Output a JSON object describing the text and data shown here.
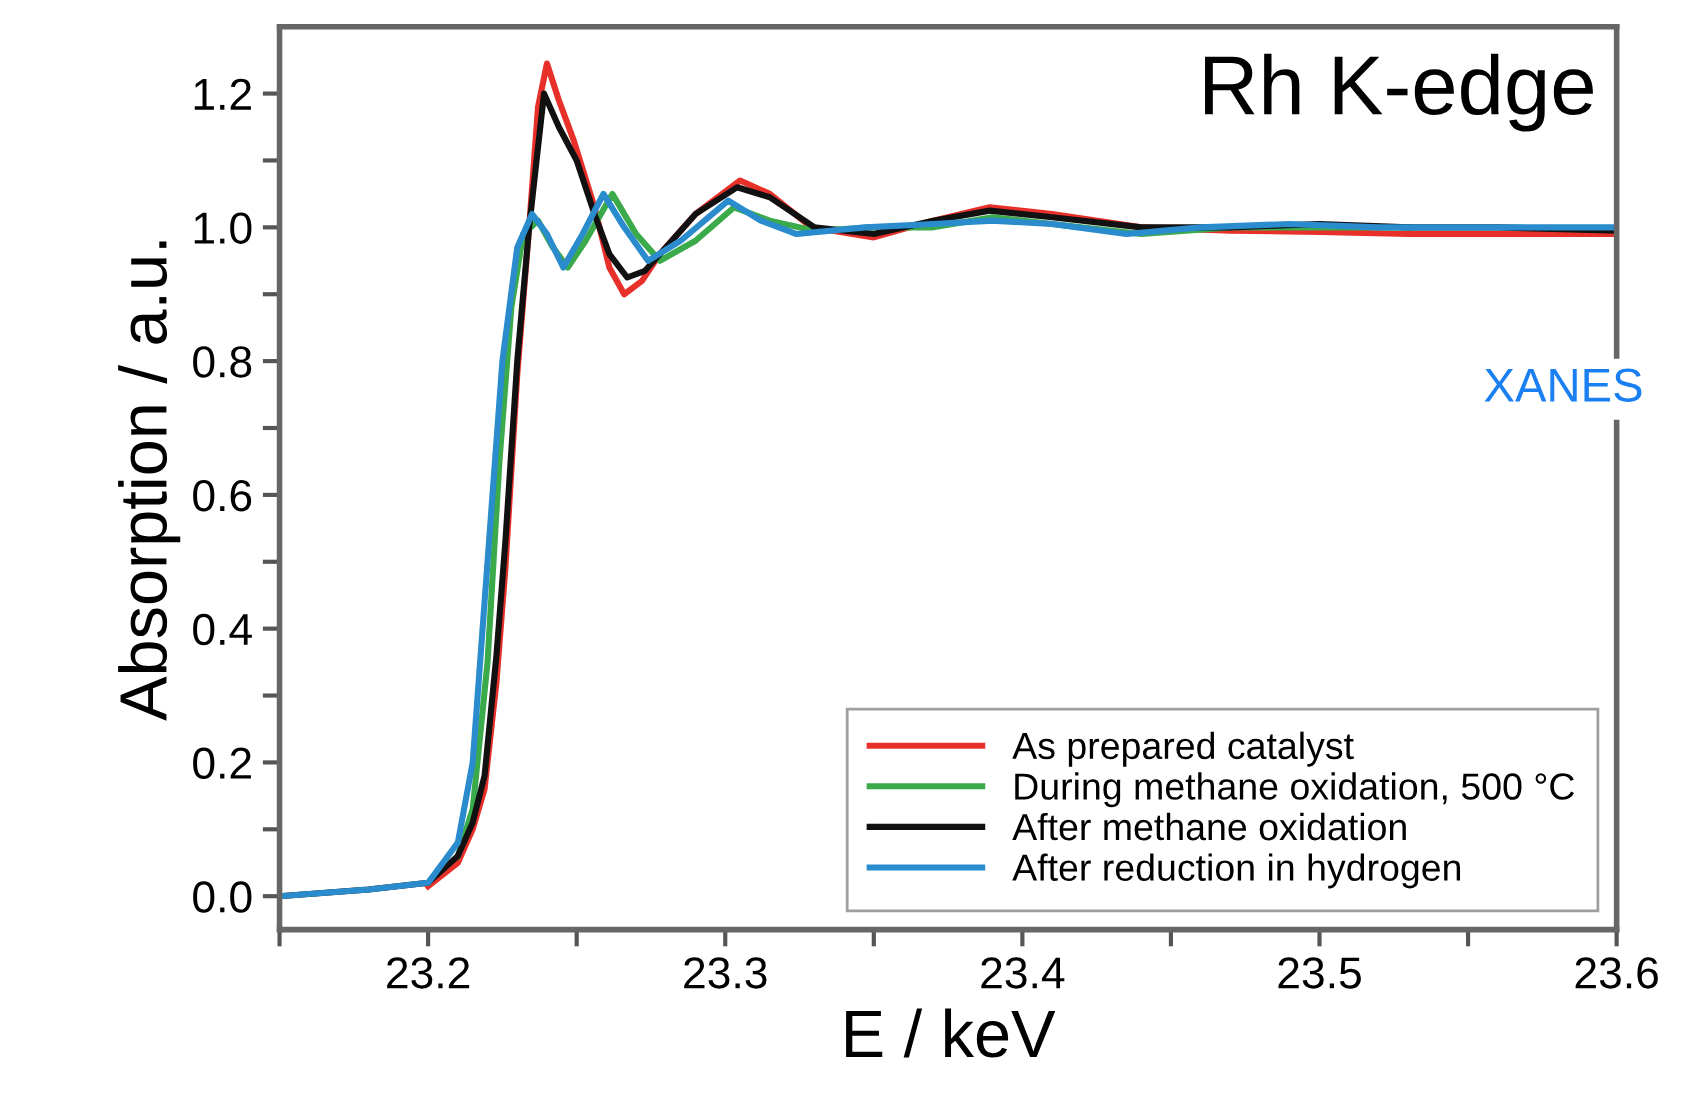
{
  "chart_data": {
    "type": "line",
    "xlabel": "E / keV",
    "ylabel": "Absorption / a.u.",
    "annotations": [
      "Rh K-edge",
      "XANES"
    ],
    "xlim": [
      23.15,
      23.6
    ],
    "xticks": [
      {
        "value": 23.15,
        "label": null
      },
      {
        "value": 23.2,
        "label": "23.2"
      },
      {
        "value": 23.25,
        "label": null
      },
      {
        "value": 23.3,
        "label": "23.3"
      },
      {
        "value": 23.35,
        "label": null
      },
      {
        "value": 23.4,
        "label": "23.4"
      },
      {
        "value": 23.45,
        "label": null
      },
      {
        "value": 23.5,
        "label": "23.5"
      },
      {
        "value": 23.55,
        "label": null
      },
      {
        "value": 23.6,
        "label": "23.6"
      }
    ],
    "ylim": [
      -0.05,
      1.3
    ],
    "yticks": [
      {
        "value": 0.0,
        "label": "0.0"
      },
      {
        "value": 0.1,
        "label": null
      },
      {
        "value": 0.2,
        "label": "0.2"
      },
      {
        "value": 0.3,
        "label": null
      },
      {
        "value": 0.4,
        "label": "0.4"
      },
      {
        "value": 0.5,
        "label": null
      },
      {
        "value": 0.6,
        "label": "0.6"
      },
      {
        "value": 0.7,
        "label": null
      },
      {
        "value": 0.8,
        "label": "0.8"
      },
      {
        "value": 0.9,
        "label": null
      },
      {
        "value": 1.0,
        "label": "1.0"
      },
      {
        "value": 1.1,
        "label": null
      },
      {
        "value": 1.2,
        "label": "1.2"
      }
    ],
    "grid": false,
    "legend": "bottom right",
    "marker": "none",
    "line_style": "solid",
    "series": [
      {
        "name": "As prepared catalyst",
        "color": "#e8302a",
        "x": [
          23.2,
          23.21,
          23.215,
          23.219,
          23.223,
          23.226,
          23.23,
          23.234,
          23.237,
          23.24,
          23.244,
          23.249,
          23.256,
          23.261,
          23.266,
          23.272,
          23.278,
          23.29,
          23.305,
          23.315,
          23.329,
          23.35,
          23.37,
          23.389,
          23.41,
          23.44,
          23.47,
          23.5,
          23.53,
          23.56,
          23.6
        ],
        "values": [
          0.015,
          0.05,
          0.1,
          0.16,
          0.32,
          0.49,
          0.78,
          1.0,
          1.18,
          1.245,
          1.19,
          1.13,
          1.03,
          0.94,
          0.9,
          0.92,
          0.96,
          1.02,
          1.07,
          1.05,
          1.0,
          0.985,
          1.01,
          1.03,
          1.02,
          1.0,
          0.995,
          0.993,
          0.99,
          0.99,
          0.99
        ]
      },
      {
        "name": "During methane oxidation, 500 °C",
        "color": "#3aaa4a",
        "x": [
          23.21,
          23.215,
          23.22,
          23.224,
          23.228,
          23.232,
          23.237,
          23.242,
          23.247,
          23.253,
          23.262,
          23.27,
          23.278,
          23.29,
          23.303,
          23.315,
          23.33,
          23.35,
          23.37,
          23.39,
          23.41,
          23.44,
          23.47,
          23.5,
          23.53
        ],
        "values": [
          0.06,
          0.13,
          0.35,
          0.65,
          0.88,
          0.99,
          1.01,
          0.97,
          0.94,
          0.98,
          1.05,
          0.99,
          0.95,
          0.98,
          1.03,
          1.01,
          0.995,
          1.0,
          1.0,
          1.015,
          1.005,
          0.99,
          1.0,
          1.0,
          1.0
        ]
      },
      {
        "name": "After methane oxidation",
        "color": "#111111",
        "x": [
          23.15,
          23.18,
          23.2,
          23.21,
          23.215,
          23.219,
          23.223,
          23.226,
          23.23,
          23.234,
          23.239,
          23.244,
          23.25,
          23.256,
          23.261,
          23.267,
          23.273,
          23.28,
          23.29,
          23.304,
          23.315,
          23.33,
          23.35,
          23.37,
          23.389,
          23.41,
          23.44,
          23.47,
          23.5,
          23.53,
          23.56,
          23.6
        ],
        "values": [
          0.0,
          0.01,
          0.02,
          0.06,
          0.11,
          0.18,
          0.36,
          0.53,
          0.8,
          1.0,
          1.2,
          1.15,
          1.1,
          1.02,
          0.96,
          0.925,
          0.935,
          0.97,
          1.02,
          1.06,
          1.045,
          1.0,
          0.99,
          1.01,
          1.025,
          1.015,
          1.0,
          1.0,
          1.005,
          1.0,
          1.0,
          0.995
        ]
      },
      {
        "name": "After reduction in hydrogen",
        "color": "#2a8ccc",
        "x": [
          23.15,
          23.18,
          23.2,
          23.21,
          23.215,
          23.22,
          23.225,
          23.23,
          23.235,
          23.24,
          23.2455,
          23.252,
          23.259,
          23.266,
          23.274,
          23.285,
          23.301,
          23.312,
          23.324,
          23.347,
          23.37,
          23.39,
          23.41,
          23.435,
          23.46,
          23.49,
          23.52,
          23.55,
          23.6
        ],
        "values": [
          0.0,
          0.01,
          0.02,
          0.08,
          0.2,
          0.5,
          0.8,
          0.97,
          1.02,
          0.99,
          0.94,
          0.99,
          1.05,
          1.0,
          0.95,
          0.98,
          1.04,
          1.01,
          0.99,
          1.0,
          1.005,
          1.01,
          1.005,
          0.99,
          1.0,
          1.005,
          1.0,
          1.0,
          1.0
        ]
      }
    ]
  }
}
